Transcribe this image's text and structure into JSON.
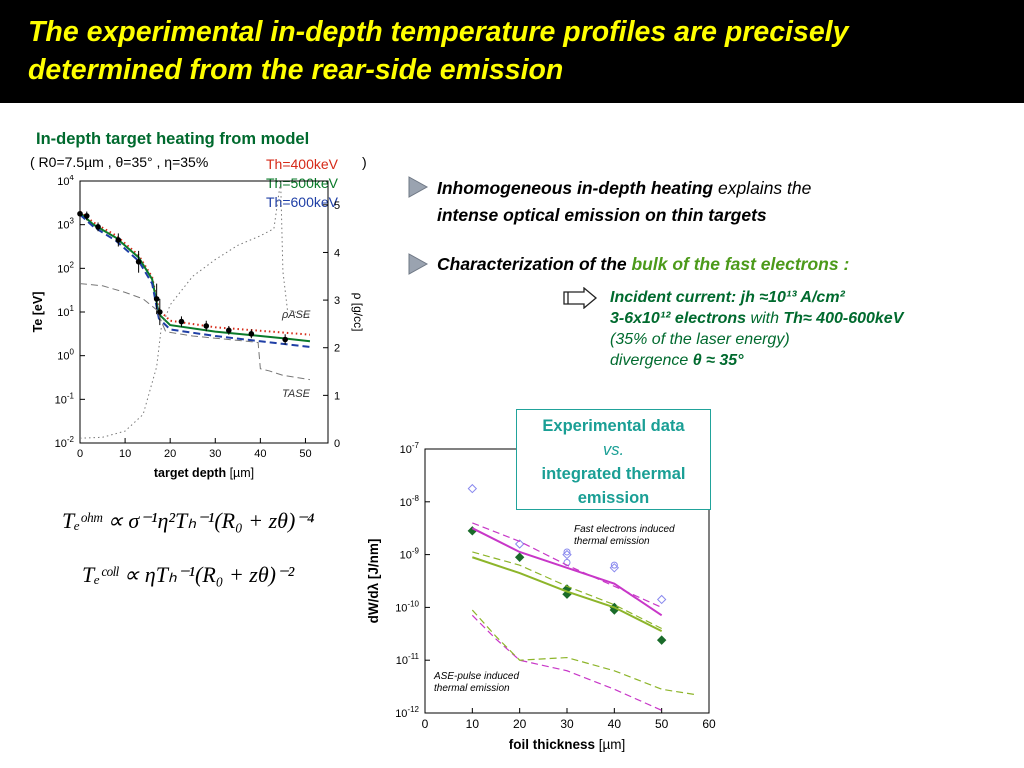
{
  "title": "The experimental in-depth temperature profiles are precisely determined from the rear-side emission",
  "left_panel": {
    "heading": "In-depth target heating from model",
    "params": "( R0=7.5µm , θ=35° , η=35%",
    "params_close": ")",
    "legend": [
      {
        "label": "Th=400keV",
        "color": "#d62a18"
      },
      {
        "label": "Th=500keV",
        "color": "#0a7a2a"
      },
      {
        "label": "Th=600keV",
        "color": "#1f3fa6"
      }
    ],
    "rho_label": "ρASE",
    "t_label": "TASE"
  },
  "bullets": {
    "b1_bold": "Inhomogeneous in-depth heating",
    "b1_rest": " explains the",
    "b1_line2": "intense optical emission on thin targets",
    "b2_black": "Characterization of the",
    "b2_green": " bulk of the fast electrons :",
    "sub1": "Incident current: jh ≈10¹³ A/cm²",
    "sub2_a": "3-6x10¹² electrons",
    "sub2_b": " with ",
    "sub2_c": "Th≈ 400-600keV",
    "sub3": "(35% of the laser energy)",
    "sub4_a": "divergence ",
    "sub4_b": "θ ≈ 35°"
  },
  "box": {
    "line1": "Experimental data",
    "line2": "vs.",
    "line3": "integrated thermal",
    "line4": "emission"
  },
  "equations": {
    "eq1": "Tₑᵒʰᵐ ∝ σ⁻¹η²Tₕ⁻¹(R₀ + zθ)⁻⁴",
    "eq2": "Tₑᶜᵒˡˡ ∝ ηTₕ⁻¹(R₀ + zθ)⁻²"
  },
  "chart_data": [
    {
      "type": "line",
      "xlabel": "target depth [µm]",
      "ylabel": "Te [eV]",
      "y2label": "ρ [g/cc]",
      "xlim": [
        0,
        55
      ],
      "ylim_log10": [
        -2,
        4
      ],
      "y2lim": [
        0,
        5.5
      ],
      "xticks": [
        0,
        10,
        20,
        30,
        40,
        50
      ],
      "yticks": [
        "10^-2",
        "10^-1",
        "10^0",
        "10^1",
        "10^2",
        "10^3",
        "10^4"
      ],
      "y2ticks": [
        0,
        1,
        2,
        3,
        4,
        5
      ],
      "series": [
        {
          "name": "Th=400keV",
          "color": "#d62a18",
          "style": "dotted",
          "x": [
            0,
            3,
            8,
            13,
            16,
            17.5,
            20,
            30,
            40,
            45,
            51
          ],
          "logy": [
            3.3,
            3.05,
            2.75,
            2.3,
            1.8,
            1.05,
            0.8,
            0.65,
            0.57,
            0.53,
            0.48
          ]
        },
        {
          "name": "Th=500keV",
          "color": "#0a7a2a",
          "style": "solid",
          "x": [
            0,
            3,
            8,
            13,
            16,
            17.5,
            20,
            30,
            40,
            45,
            51
          ],
          "logy": [
            3.27,
            3.0,
            2.7,
            2.25,
            1.75,
            0.95,
            0.7,
            0.55,
            0.45,
            0.4,
            0.33
          ]
        },
        {
          "name": "Th=600keV",
          "color": "#1f3fa6",
          "style": "dashed",
          "x": [
            0,
            3,
            8,
            13,
            16,
            17.5,
            20,
            30,
            40,
            45,
            51
          ],
          "logy": [
            3.23,
            2.95,
            2.63,
            2.17,
            1.65,
            0.85,
            0.6,
            0.45,
            0.33,
            0.27,
            0.2
          ]
        },
        {
          "name": "data",
          "color": "#000000",
          "style": "points",
          "x": [
            0,
            1.5,
            4,
            8.5,
            13,
            17,
            17.7,
            22.5,
            28,
            33,
            38,
            45.5
          ],
          "logy": [
            3.25,
            3.2,
            2.95,
            2.65,
            2.15,
            1.3,
            1.0,
            0.78,
            0.68,
            0.58,
            0.5,
            0.37
          ],
          "err": [
            0.12,
            0.1,
            0.1,
            0.15,
            0.25,
            0.35,
            0.3,
            0.12,
            0.12,
            0.1,
            0.1,
            0.12
          ]
        },
        {
          "name": "ρASE",
          "color": "#777777",
          "style": "dotted-right",
          "x": [
            0,
            5,
            10,
            14,
            17,
            18,
            20,
            25,
            30,
            35,
            40,
            43,
            44.5,
            45,
            46,
            51
          ],
          "y2": [
            0.1,
            0.12,
            0.25,
            0.6,
            1.6,
            2.4,
            2.9,
            3.5,
            3.85,
            4.15,
            4.35,
            4.5,
            5.5,
            3.6,
            2.8,
            2.65
          ]
        },
        {
          "name": "TASE",
          "color": "#777777",
          "style": "dashed",
          "x": [
            0,
            5,
            10,
            14,
            17,
            19,
            25,
            30,
            35,
            38,
            39.5,
            40,
            42,
            45,
            51
          ],
          "logy": [
            1.65,
            1.6,
            1.45,
            1.3,
            1.05,
            0.55,
            0.45,
            0.4,
            0.35,
            0.32,
            0.3,
            -0.3,
            -0.35,
            -0.45,
            -0.55
          ]
        }
      ]
    },
    {
      "type": "scatter",
      "xlabel": "foil thickness [µm]",
      "ylabel": "dW/dλ [J/nm]",
      "xlim": [
        0,
        60
      ],
      "ylim_log10": [
        -12,
        -7
      ],
      "xticks": [
        0,
        10,
        20,
        30,
        40,
        50,
        60
      ],
      "yticks": [
        "10^-12",
        "10^-11",
        "10^-10",
        "10^-9",
        "10^-8",
        "10^-7"
      ],
      "annotations": [
        "Fast electrons induced thermal emission",
        "ASE-pulse induced thermal emission"
      ],
      "series": [
        {
          "name": "exp filled",
          "color": "#1a6b2a",
          "marker": "diamond-filled",
          "x": [
            10,
            20,
            30,
            30,
            40,
            40,
            50
          ],
          "logy": [
            -8.55,
            -9.05,
            -9.65,
            -9.75,
            -10.0,
            -10.05,
            -10.62
          ]
        },
        {
          "name": "exp open",
          "color": "#8888ee",
          "marker": "diamond-open",
          "x": [
            10,
            20,
            30,
            40,
            50
          ],
          "logy": [
            -7.75,
            -8.8,
            -9.0,
            -9.25,
            -9.85
          ]
        },
        {
          "name": "exp circle",
          "color": "#8888ee",
          "marker": "circle-open",
          "x": [
            30,
            30,
            40
          ],
          "logy": [
            -8.95,
            -9.15,
            -9.2
          ]
        },
        {
          "name": "model magenta",
          "color": "#c837c8",
          "style": "solid",
          "x": [
            10,
            20,
            30,
            40,
            50
          ],
          "logy": [
            -8.5,
            -8.95,
            -9.25,
            -9.55,
            -10.15
          ]
        },
        {
          "name": "model green",
          "color": "#8db52a",
          "style": "solid",
          "x": [
            10,
            20,
            30,
            40,
            50
          ],
          "logy": [
            -9.05,
            -9.35,
            -9.7,
            -10.0,
            -10.45
          ]
        },
        {
          "name": "model magenta dashed",
          "color": "#c837c8",
          "style": "dashed",
          "x": [
            10,
            20,
            30,
            40,
            50
          ],
          "logy": [
            -8.4,
            -8.75,
            -9.2,
            -9.6,
            -10.0
          ]
        },
        {
          "name": "model green dashed",
          "color": "#8db52a",
          "style": "dashed",
          "x": [
            10,
            20,
            30,
            40,
            50
          ],
          "logy": [
            -8.95,
            -9.2,
            -9.6,
            -9.95,
            -10.4
          ]
        },
        {
          "name": "ASE magenta",
          "color": "#c837c8",
          "style": "dashed",
          "x": [
            10,
            15,
            20,
            30,
            40,
            50
          ],
          "logy": [
            -10.15,
            -10.6,
            -11.0,
            -11.2,
            -11.55,
            -11.95
          ]
        },
        {
          "name": "ASE green",
          "color": "#8db52a",
          "style": "dashed",
          "x": [
            10,
            15,
            20,
            30,
            40,
            50,
            57
          ],
          "logy": [
            -10.05,
            -10.55,
            -11.0,
            -10.95,
            -11.2,
            -11.55,
            -11.65
          ]
        }
      ]
    }
  ]
}
